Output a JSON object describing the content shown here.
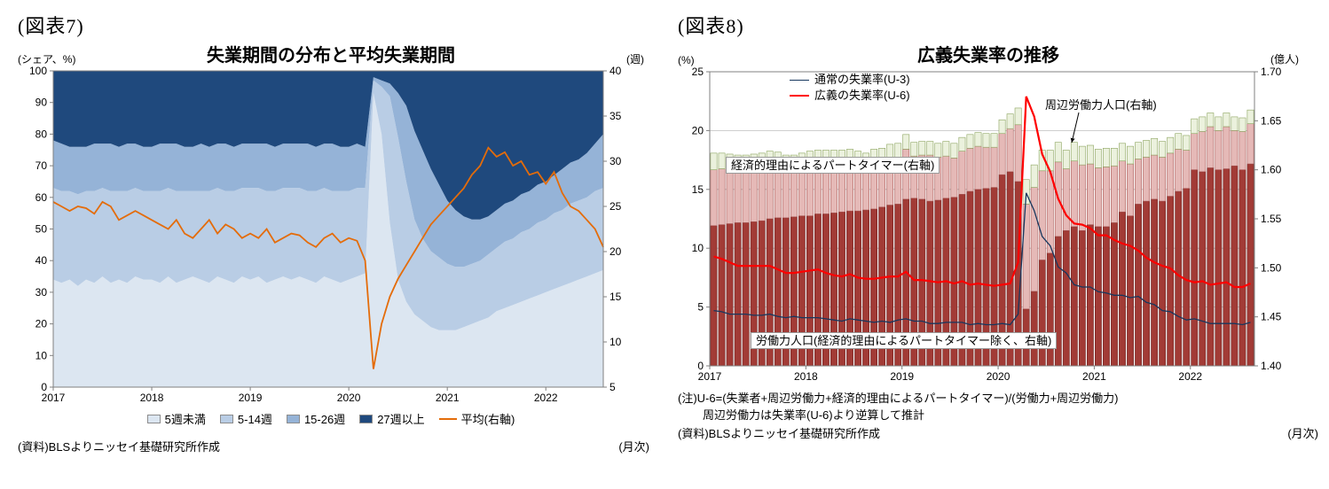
{
  "figure7": {
    "header": "(図表7)",
    "title": "失業期間の分布と平均失業期間",
    "left_axis_unit": "(シェア、%)",
    "right_axis_unit": "(週)",
    "source": "(資料)BLSよりニッセイ基礎研究所作成",
    "frequency_label": "(月次)"
  },
  "figure8": {
    "header": "(図表8)",
    "title": "広義失業率の推移",
    "left_axis_unit": "(%)",
    "right_axis_unit": "(億人)",
    "notes": [
      "(注)U-6=(失業者+周辺労働力+経済的理由によるパートタイマー)/(労働力+周辺労働力)",
      "周辺労働力は失業率(U-6)より逆算して推計"
    ],
    "source": "(資料)BLSよりニッセイ基礎研究所作成",
    "frequency_label": "(月次)",
    "annotations": {
      "u3_legend": "通常の失業率(U-3)",
      "u6_legend": "広義の失業率(U-6)",
      "marginal_label": "周辺労働力人口(右軸)",
      "pter_label": "経済的理由によるパートタイマー(右軸)",
      "lf_label": "労働力人口(経済的理由によるパートタイマー除く、右軸)"
    }
  },
  "chart_data": [
    {
      "type": "area",
      "stacked": true,
      "title": "失業期間の分布と平均失業期間",
      "x_frequency": "monthly",
      "x_start": "2017-01",
      "x_end": "2022-08",
      "x_tick_labels": [
        "2017",
        "2018",
        "2019",
        "2020",
        "2021",
        "2022"
      ],
      "left_axis": {
        "label": "(シェア、%)",
        "min": 0,
        "max": 100,
        "step": 10
      },
      "right_axis": {
        "label": "(週)",
        "min": 5,
        "max": 40,
        "step": 5
      },
      "legend_position": "bottom",
      "series": [
        {
          "name": "5週未満",
          "plot": "area",
          "axis": "left",
          "color": "#dce6f1",
          "values": [
            34,
            33,
            34,
            32,
            34,
            33,
            35,
            33,
            34,
            33,
            35,
            34,
            34,
            33,
            35,
            33,
            34,
            35,
            34,
            33,
            35,
            34,
            33,
            35,
            34,
            35,
            33,
            34,
            35,
            34,
            35,
            34,
            33,
            35,
            34,
            33,
            34,
            35,
            36,
            93,
            80,
            52,
            34,
            27,
            23,
            21,
            19,
            18,
            18,
            18,
            19,
            20,
            21,
            22,
            24,
            25,
            26,
            27,
            28,
            29,
            30,
            31,
            32,
            33,
            34,
            35,
            36,
            37
          ]
        },
        {
          "name": "5-14週",
          "plot": "area",
          "axis": "left",
          "color": "#b9cde5",
          "values": [
            29,
            29,
            28,
            29,
            28,
            29,
            28,
            29,
            28,
            29,
            28,
            28,
            28,
            29,
            28,
            29,
            28,
            27,
            28,
            29,
            28,
            28,
            29,
            28,
            29,
            28,
            29,
            28,
            28,
            29,
            28,
            28,
            29,
            28,
            28,
            29,
            28,
            28,
            27,
            4,
            15,
            40,
            45,
            38,
            30,
            26,
            24,
            23,
            21,
            20,
            19,
            19,
            19,
            20,
            20,
            21,
            21,
            22,
            22,
            23,
            23,
            24,
            24,
            25,
            25,
            25,
            26,
            26
          ]
        },
        {
          "name": "15-26週",
          "plot": "area",
          "axis": "left",
          "color": "#95b3d7",
          "values": [
            15,
            15,
            14,
            15,
            14,
            15,
            14,
            15,
            14,
            15,
            14,
            14,
            14,
            15,
            14,
            15,
            14,
            14,
            15,
            14,
            14,
            15,
            14,
            14,
            14,
            14,
            15,
            14,
            14,
            14,
            14,
            15,
            14,
            14,
            15,
            14,
            14,
            14,
            13,
            1,
            2,
            4,
            14,
            24,
            28,
            28,
            26,
            23,
            20,
            18,
            16,
            14,
            13,
            12,
            12,
            12,
            12,
            12,
            12,
            12,
            12,
            12,
            13,
            13,
            13,
            14,
            15,
            17
          ]
        },
        {
          "name": "27週以上",
          "plot": "area",
          "axis": "left",
          "color": "#1f497d",
          "values": [
            22,
            23,
            24,
            24,
            24,
            23,
            23,
            23,
            24,
            23,
            23,
            24,
            24,
            23,
            23,
            23,
            24,
            24,
            23,
            24,
            23,
            23,
            24,
            23,
            23,
            23,
            23,
            24,
            23,
            23,
            23,
            23,
            24,
            23,
            23,
            24,
            24,
            23,
            24,
            2,
            3,
            4,
            7,
            11,
            19,
            25,
            31,
            36,
            41,
            44,
            46,
            47,
            47,
            46,
            44,
            42,
            41,
            39,
            38,
            36,
            35,
            33,
            31,
            29,
            28,
            26,
            23,
            20
          ]
        },
        {
          "name": "平均(右軸)",
          "plot": "line",
          "axis": "right",
          "color": "#e46c0a",
          "values": [
            25.5,
            25,
            24.5,
            25,
            24.8,
            24.2,
            25.5,
            25,
            23.5,
            24,
            24.5,
            24,
            23.5,
            23,
            22.5,
            23.5,
            22,
            21.5,
            22.5,
            23.5,
            22,
            23,
            22.5,
            21.5,
            22,
            21.5,
            22.5,
            21,
            21.5,
            22,
            21.8,
            21,
            20.5,
            21.5,
            22,
            21,
            21.5,
            21.2,
            19,
            7,
            12,
            15,
            17,
            18.5,
            20,
            21.5,
            23,
            24,
            25,
            26,
            27,
            28.5,
            29.5,
            31.5,
            30.5,
            31,
            29.5,
            30,
            28.5,
            28.8,
            27.5,
            28.8,
            26.5,
            25,
            24.5,
            23.5,
            22.5,
            20.5
          ]
        }
      ]
    },
    {
      "type": "bar",
      "stacked_bars": true,
      "title": "広義失業率の推移",
      "x_frequency": "monthly",
      "x_start": "2017-01",
      "x_end": "2022-08",
      "x_tick_labels": [
        "2017",
        "2018",
        "2019",
        "2020",
        "2021",
        "2022"
      ],
      "left_axis": {
        "label": "(%)",
        "min": 0,
        "max": 25,
        "step": 5
      },
      "right_axis": {
        "label": "(億人)",
        "min": 1.4,
        "max": 1.7,
        "step": 0.05
      },
      "grid": true,
      "series": [
        {
          "name": "労働力人口(経済的理由によるパートタイマー除く、右軸)",
          "plot": "bar",
          "axis": "right",
          "color": "#a23b36",
          "stroke": "#6d2220",
          "values": [
            1.543,
            1.544,
            1.545,
            1.546,
            1.546,
            1.547,
            1.548,
            1.55,
            1.551,
            1.551,
            1.552,
            1.553,
            1.553,
            1.555,
            1.555,
            1.556,
            1.557,
            1.558,
            1.558,
            1.559,
            1.56,
            1.562,
            1.564,
            1.565,
            1.57,
            1.571,
            1.57,
            1.568,
            1.569,
            1.571,
            1.572,
            1.575,
            1.578,
            1.58,
            1.581,
            1.582,
            1.595,
            1.598,
            1.588,
            1.458,
            1.476,
            1.508,
            1.515,
            1.532,
            1.538,
            1.542,
            1.538,
            1.544,
            1.542,
            1.542,
            1.546,
            1.557,
            1.553,
            1.565,
            1.568,
            1.57,
            1.568,
            1.573,
            1.578,
            1.581,
            1.6,
            1.598,
            1.602,
            1.6,
            1.601,
            1.604,
            1.6,
            1.606
          ]
        },
        {
          "name": "経済的理由によるパートタイマー(右軸)",
          "plot": "bar",
          "axis": "right",
          "color": "#e5b9b7",
          "stroke": "#a95754",
          "values": [
            0.057,
            0.057,
            0.055,
            0.053,
            0.053,
            0.053,
            0.053,
            0.053,
            0.051,
            0.049,
            0.048,
            0.049,
            0.05,
            0.05,
            0.05,
            0.049,
            0.048,
            0.048,
            0.046,
            0.044,
            0.046,
            0.046,
            0.047,
            0.047,
            0.051,
            0.043,
            0.045,
            0.047,
            0.044,
            0.043,
            0.04,
            0.044,
            0.044,
            0.044,
            0.042,
            0.041,
            0.042,
            0.044,
            0.058,
            0.107,
            0.106,
            0.091,
            0.084,
            0.076,
            0.063,
            0.067,
            0.067,
            0.062,
            0.06,
            0.061,
            0.058,
            0.052,
            0.053,
            0.046,
            0.045,
            0.045,
            0.045,
            0.044,
            0.043,
            0.039,
            0.037,
            0.041,
            0.042,
            0.04,
            0.043,
            0.036,
            0.039,
            0.041
          ]
        },
        {
          "name": "周辺労働力人口(右軸)",
          "plot": "bar",
          "axis": "right",
          "color": "#ebf1dd",
          "stroke": "#8ca45f",
          "values": [
            0.017,
            0.016,
            0.016,
            0.016,
            0.016,
            0.016,
            0.016,
            0.016,
            0.016,
            0.015,
            0.015,
            0.015,
            0.016,
            0.015,
            0.015,
            0.015,
            0.015,
            0.015,
            0.015,
            0.014,
            0.015,
            0.014,
            0.015,
            0.015,
            0.015,
            0.014,
            0.014,
            0.014,
            0.014,
            0.015,
            0.015,
            0.014,
            0.014,
            0.014,
            0.014,
            0.014,
            0.014,
            0.015,
            0.017,
            0.025,
            0.023,
            0.021,
            0.021,
            0.02,
            0.019,
            0.019,
            0.019,
            0.019,
            0.019,
            0.019,
            0.018,
            0.018,
            0.018,
            0.017,
            0.017,
            0.017,
            0.016,
            0.016,
            0.016,
            0.015,
            0.015,
            0.015,
            0.014,
            0.014,
            0.014,
            0.014,
            0.014,
            0.014
          ]
        },
        {
          "name": "通常の失業率(U-3)",
          "plot": "line",
          "axis": "left",
          "color": "#17375e",
          "width": 1.3,
          "values": [
            4.7,
            4.6,
            4.4,
            4.4,
            4.4,
            4.3,
            4.3,
            4.4,
            4.2,
            4.1,
            4.2,
            4.1,
            4.1,
            4.1,
            4.0,
            3.9,
            3.8,
            4.0,
            3.9,
            3.8,
            3.7,
            3.8,
            3.7,
            3.9,
            4.0,
            3.8,
            3.8,
            3.6,
            3.6,
            3.7,
            3.7,
            3.7,
            3.5,
            3.6,
            3.5,
            3.5,
            3.6,
            3.5,
            4.4,
            14.7,
            13.2,
            11.0,
            10.2,
            8.4,
            7.9,
            6.9,
            6.7,
            6.7,
            6.3,
            6.2,
            6.0,
            6.0,
            5.8,
            5.9,
            5.4,
            5.2,
            4.7,
            4.6,
            4.2,
            3.9,
            4.0,
            3.8,
            3.6,
            3.6,
            3.6,
            3.6,
            3.5,
            3.7
          ]
        },
        {
          "name": "広義の失業率(U-6)",
          "plot": "line",
          "axis": "left",
          "color": "#ff0000",
          "width": 2.2,
          "values": [
            9.3,
            9.1,
            8.8,
            8.5,
            8.5,
            8.5,
            8.5,
            8.5,
            8.2,
            7.9,
            7.9,
            8.0,
            8.1,
            8.2,
            7.9,
            7.7,
            7.6,
            7.8,
            7.5,
            7.4,
            7.4,
            7.5,
            7.6,
            7.6,
            8.0,
            7.3,
            7.3,
            7.2,
            7.1,
            7.2,
            7.0,
            7.2,
            6.9,
            7.0,
            6.9,
            6.8,
            6.9,
            7.0,
            8.8,
            22.9,
            21.2,
            18.0,
            16.5,
            14.2,
            12.8,
            12.1,
            12.0,
            11.7,
            11.1,
            11.1,
            10.7,
            10.4,
            10.2,
            9.8,
            9.2,
            8.8,
            8.5,
            8.3,
            7.7,
            7.3,
            7.1,
            7.2,
            6.9,
            7.0,
            7.1,
            6.7,
            6.7,
            7.0
          ]
        }
      ]
    }
  ]
}
